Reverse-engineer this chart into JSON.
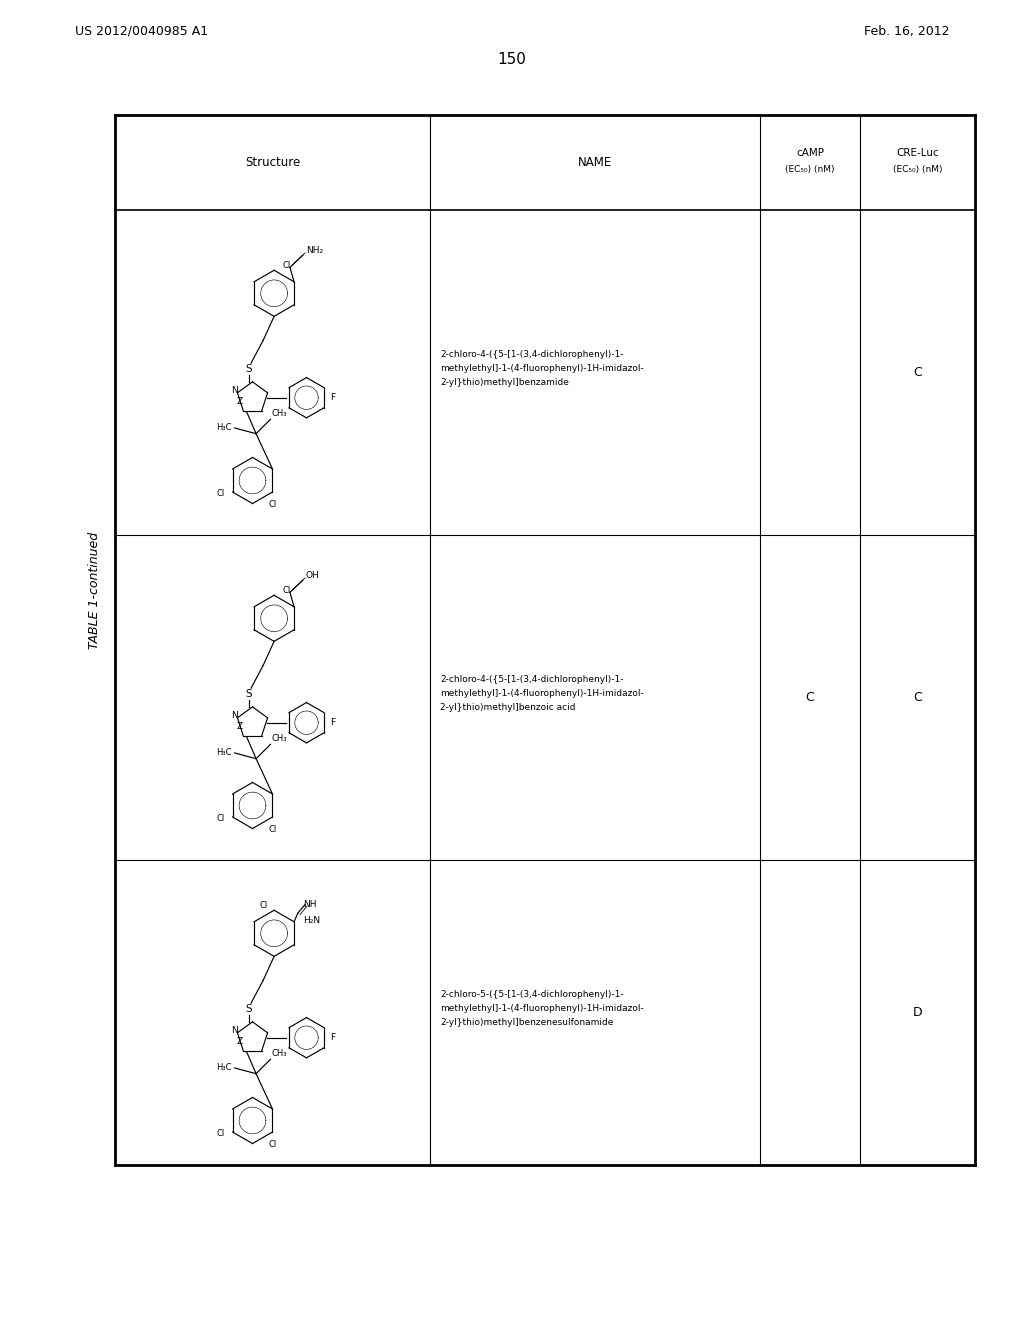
{
  "page_number": "150",
  "patent_number": "US 2012/0040985 A1",
  "patent_date": "Feb. 16, 2012",
  "table_title": "TABLE 1-continued",
  "background_color": "#ffffff",
  "table_header": {
    "col_structure": "Structure",
    "col_name": "NAME",
    "col_camp_1": "cAMP",
    "col_camp_2": "(EC",
    "col_camp_3": "50",
    "col_camp_4": ") (nM)",
    "col_cre_1": "CRE-Luc",
    "col_cre_2": "(EC",
    "col_cre_3": "50",
    "col_cre_4": ") (nM)"
  },
  "rows": [
    {
      "name_line1": "2-chloro-4-({5-[1-(3,4-dichlorophenyl)-1-",
      "name_line2": "methylethyl]-1-(4-fluorophenyl)-1H-imidazol-",
      "name_line3": "2-yl}thio)methyl]benzamide",
      "camp": "",
      "cre_luc": "C",
      "top_group": "amide"
    },
    {
      "name_line1": "2-chloro-4-({5-[1-(3,4-dichlorophenyl)-1-",
      "name_line2": "methylethyl]-1-(4-fluorophenyl)-1H-imidazol-",
      "name_line3": "2-yl}thio)methyl]benzoic acid",
      "camp": "C",
      "cre_luc": "C",
      "top_group": "acid"
    },
    {
      "name_line1": "2-chloro-5-({5-[1-(3,4-dichlorophenyl)-1-",
      "name_line2": "methylethyl]-1-(4-fluorophenyl)-1H-imidazol-",
      "name_line3": "2-yl}thio)methyl]benzenesulfonamide",
      "camp": "",
      "cre_luc": "D",
      "top_group": "sulfonamide"
    }
  ]
}
